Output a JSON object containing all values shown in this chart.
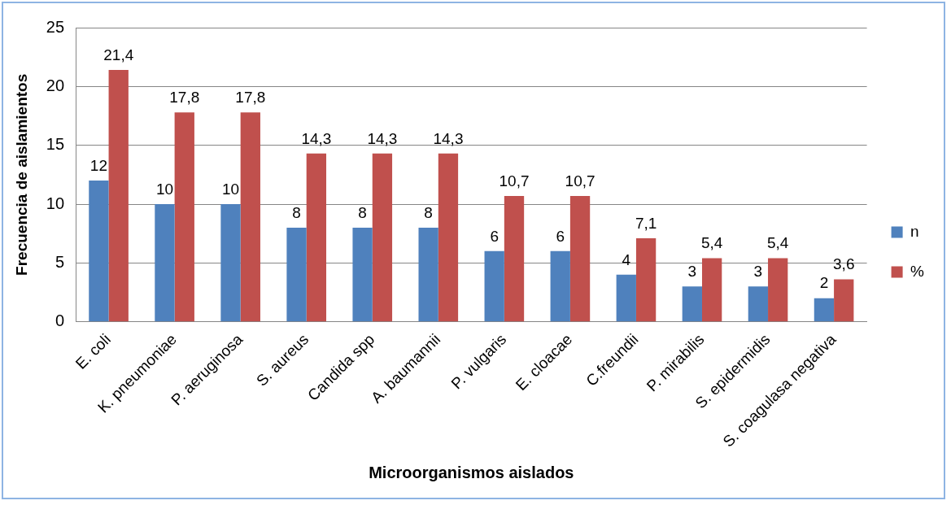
{
  "chart_data": {
    "type": "bar",
    "xlabel": "Microorganismos aislados",
    "ylabel": "Frecuencia de aislamientos",
    "categories": [
      "E. coli",
      "K. pneumoniae",
      "P. aeruginosa",
      "S. aureus",
      "Candida spp",
      "A. baumannii",
      "P. vulgaris",
      "E. cloacae",
      "C.freundii",
      "P. mirabilis",
      "S. epidermidis",
      "S. coagulasa negativa"
    ],
    "series": [
      {
        "name": "n",
        "color": "#4f81bd",
        "values": [
          12,
          10,
          10,
          8,
          8,
          8,
          6,
          6,
          4,
          3,
          3,
          2
        ],
        "value_labels": [
          "12",
          "10",
          "10",
          "8",
          "8",
          "8",
          "6",
          "6",
          "4",
          "3",
          "3",
          "2"
        ]
      },
      {
        "name": "%",
        "color": "#c0504d",
        "values": [
          21.4,
          17.8,
          17.8,
          14.3,
          14.3,
          14.3,
          10.7,
          10.7,
          7.1,
          5.4,
          5.4,
          3.6
        ],
        "value_labels": [
          "21,4",
          "17,8",
          "17,8",
          "14,3",
          "14,3",
          "14,3",
          "10,7",
          "10,7",
          "7,1",
          "5,4",
          "5,4",
          "3,6"
        ]
      }
    ],
    "ylim": [
      0,
      25
    ],
    "yticks": [
      0,
      5,
      10,
      15,
      20,
      25
    ],
    "grid": "y",
    "legend": "right"
  }
}
